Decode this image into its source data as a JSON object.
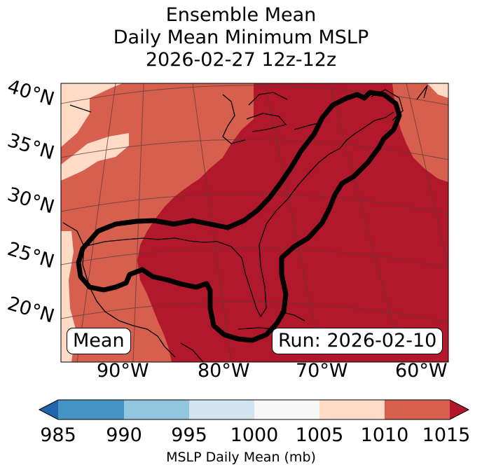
{
  "title": {
    "line1": "Ensemble Mean",
    "line2": "Daily Mean Minimum MSLP",
    "line3": "2026-02-27 12z-12z"
  },
  "map": {
    "latitude_labels": [
      "40°N",
      "35°N",
      "30°N",
      "25°N",
      "20°N"
    ],
    "longitude_labels": [
      "90°W",
      "80°W",
      "70°W",
      "60°W"
    ],
    "mean_label": "Mean",
    "run_label": "Run: 2026-02-10",
    "contour_color": "#000000"
  },
  "colorbar": {
    "label": "MSLP Daily Mean (mb)",
    "ticks": [
      "985",
      "990",
      "995",
      "1000",
      "1005",
      "1010",
      "1015"
    ],
    "colors": {
      "under": "#2166ac",
      "b985_990": "#4393c3",
      "b990_995": "#92c5de",
      "b995_1000": "#d1e5f0",
      "b1000_1005": "#f7f7f7",
      "b1005_1010": "#fddbc7",
      "b1010_1015": "#d6604d",
      "over": "#b2182b"
    }
  }
}
